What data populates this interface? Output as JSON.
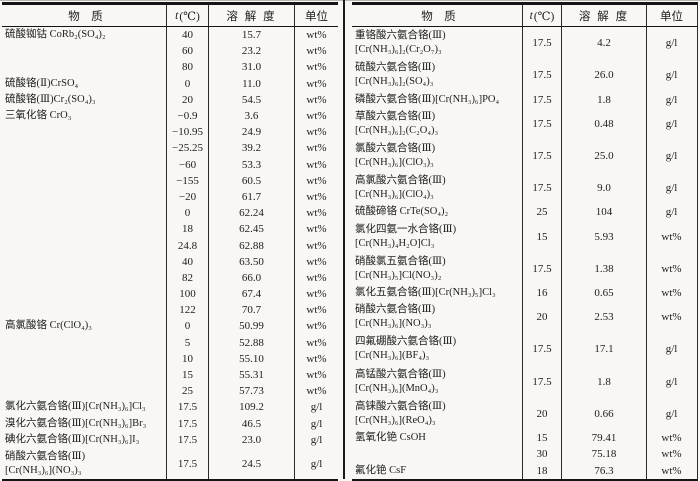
{
  "page": {
    "bg": "#f8f7f3",
    "ink": "#1c1c1c",
    "border": "#141414"
  },
  "headers": {
    "substance": "物　质",
    "t_italic": "t",
    "t_unit": "(℃)",
    "solubility": "溶 解 度",
    "unit": "单位"
  },
  "left_table": {
    "rows": [
      {
        "name": "硫酸铷钴 CoRb₂(SO₄)₂",
        "name2": "",
        "t": "40",
        "sol": "15.7",
        "unit": "wt%"
      },
      {
        "name": "",
        "name2": "",
        "t": "60",
        "sol": "23.2",
        "unit": "wt%"
      },
      {
        "name": "",
        "name2": "",
        "t": "80",
        "sol": "31.0",
        "unit": "wt%"
      },
      {
        "name": "硫酸铬(Ⅱ)CrSO₄",
        "name2": "",
        "t": "0",
        "sol": "11.0",
        "unit": "wt%"
      },
      {
        "name": "硫酸铬(Ⅲ)Cr₂(SO₄)₃",
        "name2": "",
        "t": "20",
        "sol": "54.5",
        "unit": "wt%"
      },
      {
        "name": "三氧化铬 CrO₃",
        "name2": "",
        "t": "−0.9",
        "sol": "3.6",
        "unit": "wt%"
      },
      {
        "name": "",
        "name2": "",
        "t": "−10.95",
        "sol": "24.9",
        "unit": "wt%"
      },
      {
        "name": "",
        "name2": "",
        "t": "−25.25",
        "sol": "39.2",
        "unit": "wt%"
      },
      {
        "name": "",
        "name2": "",
        "t": "−60",
        "sol": "53.3",
        "unit": "wt%"
      },
      {
        "name": "",
        "name2": "",
        "t": "−155",
        "sol": "60.5",
        "unit": "wt%"
      },
      {
        "name": "",
        "name2": "",
        "t": "−20",
        "sol": "61.7",
        "unit": "wt%"
      },
      {
        "name": "",
        "name2": "",
        "t": "0",
        "sol": "62.24",
        "unit": "wt%"
      },
      {
        "name": "",
        "name2": "",
        "t": "18",
        "sol": "62.45",
        "unit": "wt%"
      },
      {
        "name": "",
        "name2": "",
        "t": "24.8",
        "sol": "62.88",
        "unit": "wt%"
      },
      {
        "name": "",
        "name2": "",
        "t": "40",
        "sol": "63.50",
        "unit": "wt%"
      },
      {
        "name": "",
        "name2": "",
        "t": "82",
        "sol": "66.0",
        "unit": "wt%"
      },
      {
        "name": "",
        "name2": "",
        "t": "100",
        "sol": "67.4",
        "unit": "wt%"
      },
      {
        "name": "",
        "name2": "",
        "t": "122",
        "sol": "70.7",
        "unit": "wt%"
      },
      {
        "name": "高氯酸铬 Cr(ClO₄)₃",
        "name2": "",
        "t": "0",
        "sol": "50.99",
        "unit": "wt%"
      },
      {
        "name": "",
        "name2": "",
        "t": "5",
        "sol": "52.88",
        "unit": "wt%"
      },
      {
        "name": "",
        "name2": "",
        "t": "10",
        "sol": "55.10",
        "unit": "wt%"
      },
      {
        "name": "",
        "name2": "",
        "t": "15",
        "sol": "55.31",
        "unit": "wt%"
      },
      {
        "name": "",
        "name2": "",
        "t": "25",
        "sol": "57.73",
        "unit": "wt%"
      },
      {
        "name": "氯化六氨合铬(Ⅲ)[Cr(NH₃)₆]Cl₃",
        "name2": "",
        "t": "17.5",
        "sol": "109.2",
        "unit": "g/l"
      },
      {
        "name": "溴化六氨合铬(Ⅲ)[Cr(NH₃)₆]Br₃",
        "name2": "",
        "t": "17.5",
        "sol": "46.5",
        "unit": "g/l"
      },
      {
        "name": "碘化六氨合铬(Ⅲ)[Cr(NH₃)₆]I₃",
        "name2": "",
        "t": "17.5",
        "sol": "23.0",
        "unit": "g/l"
      },
      {
        "name": "硝酸六氨合铬(Ⅲ)",
        "name2": "[Cr(NH₃)₆](NO₃)₃",
        "t": "17.5",
        "sol": "24.5",
        "unit": "g/l"
      }
    ]
  },
  "right_table": {
    "rows": [
      {
        "name": "重铬酸六氨合铬(Ⅲ)",
        "name2": "[Cr(NH₃)₆]₂(Cr₂O₇)₃",
        "t": "17.5",
        "sol": "4.2",
        "unit": "g/l"
      },
      {
        "name": "硫酸六氨合铬(Ⅲ)",
        "name2": "[Cr(NH₃)₆]₂(SO₄)₃",
        "t": "17.5",
        "sol": "26.0",
        "unit": "g/l"
      },
      {
        "name": "磷酸六氨合铬(Ⅲ)[Cr(NH₃)₆]PO₄",
        "name2": "",
        "t": "17.5",
        "sol": "1.8",
        "unit": "g/l"
      },
      {
        "name": "草酸六氨合铬(Ⅲ)",
        "name2": "[Cr(NH₃)₆]₂(C₂O₄)₃",
        "t": "17.5",
        "sol": "0.48",
        "unit": "g/l"
      },
      {
        "name": "氯酸六氨合铬(Ⅲ)",
        "name2": "[Cr(NH₃)₆](ClO₃)₃",
        "t": "17.5",
        "sol": "25.0",
        "unit": "g/l"
      },
      {
        "name": "高氯酸六氨合铬(Ⅲ)",
        "name2": "[Cr(NH₃)₆](ClO₄)₃",
        "t": "17.5",
        "sol": "9.0",
        "unit": "g/l"
      },
      {
        "name": "硫酸碲铬 CrTe(SO₄)₂",
        "name2": "",
        "t": "25",
        "sol": "104",
        "unit": "g/l"
      },
      {
        "name": "氯化四氨一水合铬(Ⅲ)",
        "name2": "[Cr(NH₃)₄H₂O]Cl₃",
        "t": "15",
        "sol": "5.93",
        "unit": "wt%"
      },
      {
        "name": "硝酸氯五氨合铬(Ⅲ)",
        "name2": "[Cr(NH₃)₅]Cl(NO₃)₂",
        "t": "17.5",
        "sol": "1.38",
        "unit": "wt%"
      },
      {
        "name": "氯化五氨合铬(Ⅲ)[Cr(NH₃)₅]Cl₃",
        "name2": "",
        "t": "16",
        "sol": "0.65",
        "unit": "wt%"
      },
      {
        "name": "硝酸六氨合铬(Ⅲ)",
        "name2": "[Cr(NH₃)₆](NO₃)₃",
        "t": "20",
        "sol": "2.53",
        "unit": "wt%"
      },
      {
        "name": "四氟硼酸六氨合铬(Ⅲ)",
        "name2": "[Cr(NH₃)₆](BF₄)₃",
        "t": "17.5",
        "sol": "17.1",
        "unit": "g/l"
      },
      {
        "name": "高锰酸六氨合铬(Ⅲ)",
        "name2": "[Cr(NH₃)₆](MnO₄)₃",
        "t": "17.5",
        "sol": "1.8",
        "unit": "g/l"
      },
      {
        "name": "高铼酸六氨合铬(Ⅲ)",
        "name2": "[Cr(NH₃)₆](ReO₄)₃",
        "t": "20",
        "sol": "0.66",
        "unit": "g/l"
      },
      {
        "name": "氢氧化铯 CsOH",
        "name2": "",
        "t": "15",
        "sol": "79.41",
        "unit": "wt%"
      },
      {
        "name": "",
        "name2": "",
        "t": "30",
        "sol": "75.18",
        "unit": "wt%"
      },
      {
        "name": "氟化铯 CsF",
        "name2": "",
        "t": "18",
        "sol": "76.3",
        "unit": "wt%"
      }
    ]
  }
}
